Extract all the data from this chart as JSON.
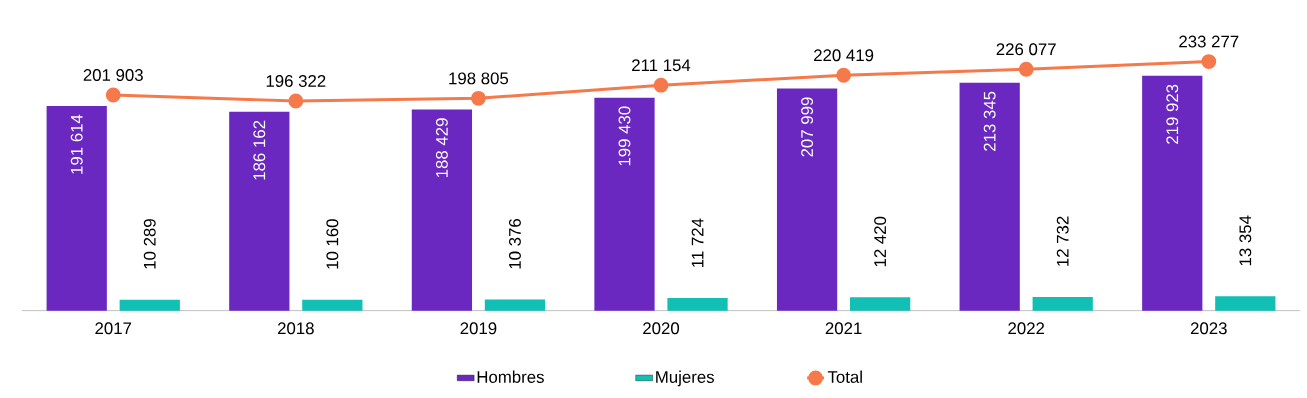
{
  "chart_data": {
    "type": "bar",
    "categories": [
      "2017",
      "2018",
      "2019",
      "2020",
      "2021",
      "2022",
      "2023"
    ],
    "series": [
      {
        "name": "Hombres",
        "color": "#6a28c0",
        "values": [
          191614,
          186162,
          188429,
          199430,
          207999,
          213345,
          219923
        ],
        "value_labels": [
          "191 614",
          "186 162",
          "188 429",
          "199 430",
          "207 999",
          "213 345",
          "219 923"
        ]
      },
      {
        "name": "Mujeres",
        "color": "#12bfb5",
        "values": [
          10289,
          10160,
          10376,
          11724,
          12420,
          12732,
          13354
        ],
        "value_labels": [
          "10 289",
          "10 160",
          "10 376",
          "11 724",
          "12 420",
          "12 732",
          "13 354"
        ]
      },
      {
        "name": "Total",
        "type": "line",
        "color": "#f5794a",
        "marker": "circle",
        "values": [
          201903,
          196322,
          198805,
          211154,
          220419,
          226077,
          233277
        ],
        "value_labels": [
          "201 903",
          "196 322",
          "198 805",
          "211 154",
          "220 419",
          "226 077",
          "233 277"
        ]
      }
    ],
    "legend": "bottom",
    "grid": false
  }
}
